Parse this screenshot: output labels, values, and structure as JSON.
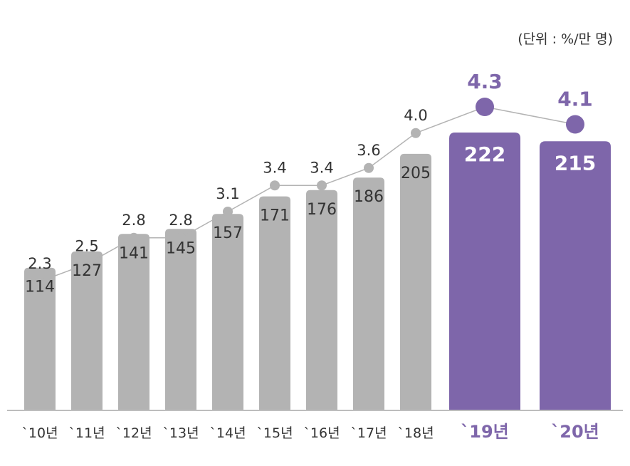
{
  "unit_label": "(단위 : %/만 명)",
  "colors": {
    "bar_default": "#B3B3B3",
    "bar_highlight": "#7E66AA",
    "line": "#B3B3B3",
    "dot_default": "#B3B3B3",
    "dot_highlight": "#7E66AA",
    "text_default": "#333333",
    "text_highlight": "#7E66AA",
    "axis": "#BDBDBD"
  },
  "chart_data": {
    "type": "bar",
    "categories": [
      "`10년",
      "`11년",
      "`12년",
      "`13년",
      "`14년",
      "`15년",
      "`16년",
      "`17년",
      "`18년",
      "`19년",
      "`20년"
    ],
    "series": [
      {
        "values": [
          114,
          127,
          141,
          145,
          157,
          171,
          176,
          186,
          205,
          222,
          215
        ]
      },
      {
        "type": "line",
        "values": [
          2.3,
          2.5,
          2.8,
          2.8,
          3.1,
          3.4,
          3.4,
          3.6,
          4.0,
          4.3,
          4.1
        ]
      }
    ],
    "value_labels": [
      "114",
      "127",
      "141",
      "145",
      "157",
      "171",
      "176",
      "186",
      "205",
      "222",
      "215"
    ],
    "line_labels": [
      "2.3",
      "2.5",
      "2.8",
      "2.8",
      "3.1",
      "3.4",
      "3.4",
      "3.6",
      "4.0",
      "4.3",
      "4.1"
    ],
    "highlight": [
      "`19년",
      "`20년"
    ],
    "legend": "none",
    "grid": false
  }
}
